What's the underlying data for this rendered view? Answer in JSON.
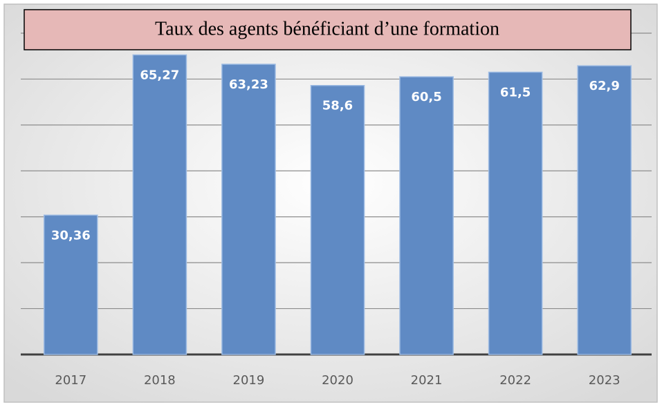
{
  "chart_data": {
    "type": "bar",
    "title": "Taux des agents bénéficiant d’une formation",
    "categories": [
      "2017",
      "2018",
      "2019",
      "2020",
      "2021",
      "2022",
      "2023"
    ],
    "values": [
      30.36,
      65.27,
      63.23,
      58.6,
      60.5,
      61.5,
      62.9
    ],
    "value_labels": [
      "30,36",
      "65,27",
      "63,23",
      "58,6",
      "60,5",
      "61,5",
      "62,9"
    ],
    "color": "#5f8ac4",
    "ylim": [
      0,
      70
    ],
    "yticks": [
      0,
      10,
      20,
      30,
      40,
      50,
      60,
      70
    ],
    "grid": true
  }
}
